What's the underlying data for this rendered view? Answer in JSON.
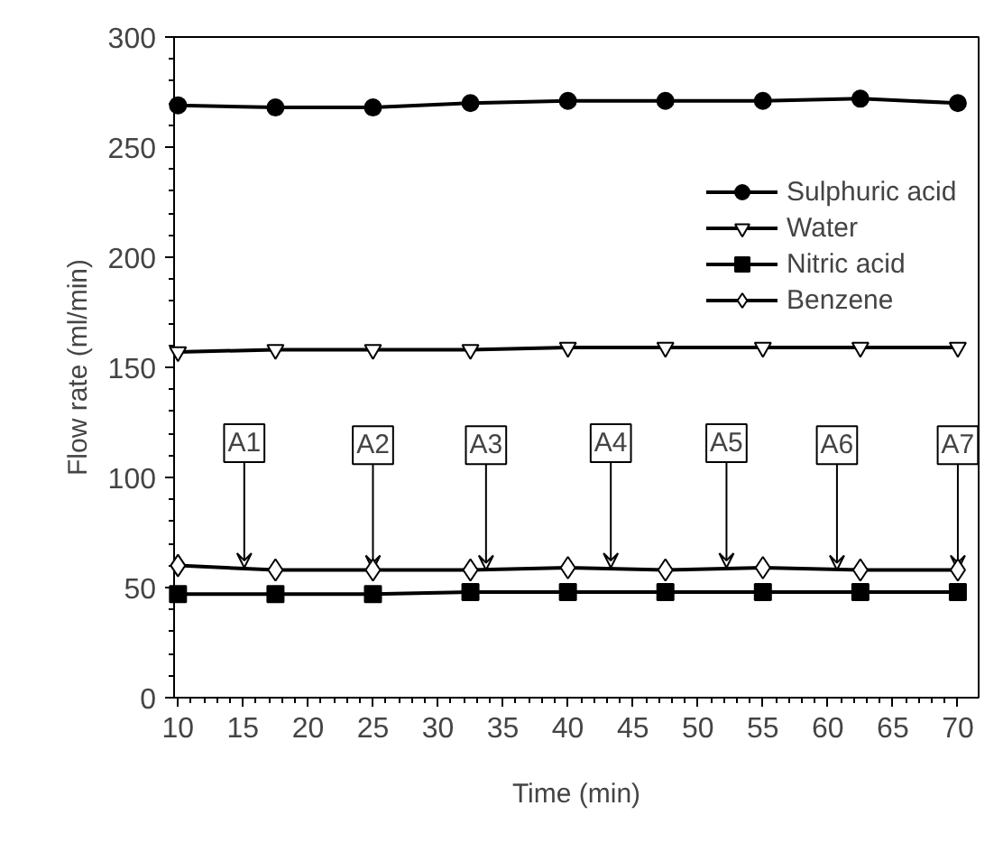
{
  "chart_data": {
    "type": "line",
    "xlabel": "Time (min)",
    "ylabel": "Flow rate (ml/min)",
    "x": [
      10,
      17.5,
      25,
      32.5,
      40,
      47.5,
      55,
      62.5,
      70
    ],
    "series": [
      {
        "name": "Sulphuric acid",
        "color": "#000000",
        "marker": "circle",
        "values": [
          269,
          268,
          268,
          270,
          271,
          271,
          271,
          272,
          270
        ]
      },
      {
        "name": "Water",
        "color": "#000000",
        "marker": "triangle",
        "values": [
          157,
          158,
          158,
          158,
          159,
          159,
          159,
          159,
          159
        ]
      },
      {
        "name": "Nitric acid",
        "color": "#000000",
        "marker": "square",
        "values": [
          47,
          47,
          47,
          48,
          48,
          48,
          48,
          48,
          48
        ]
      },
      {
        "name": "Benzene",
        "color": "#000000",
        "marker": "diamond",
        "values": [
          60,
          58,
          58,
          58,
          59,
          58,
          59,
          58,
          58
        ]
      }
    ],
    "annotations": [
      {
        "text": "A1",
        "x": 15.1,
        "y": 59
      },
      {
        "text": "A2",
        "x": 25,
        "y": 58
      },
      {
        "text": "A3",
        "x": 33.7,
        "y": 58
      },
      {
        "text": "A4",
        "x": 43.3,
        "y": 59
      },
      {
        "text": "A5",
        "x": 52.2,
        "y": 59
      },
      {
        "text": "A6",
        "x": 60.7,
        "y": 58
      },
      {
        "text": "A7",
        "x": 70,
        "y": 58
      }
    ],
    "xlim": [
      9.7,
      71.6
    ],
    "ylim": [
      0,
      300
    ],
    "xticks": [
      10,
      15,
      20,
      25,
      30,
      35,
      40,
      45,
      50,
      55,
      60,
      65,
      70
    ],
    "yticks": [
      0,
      50,
      100,
      150,
      200,
      250,
      300
    ],
    "grid": false,
    "legend": "right",
    "line_style": "solid"
  }
}
